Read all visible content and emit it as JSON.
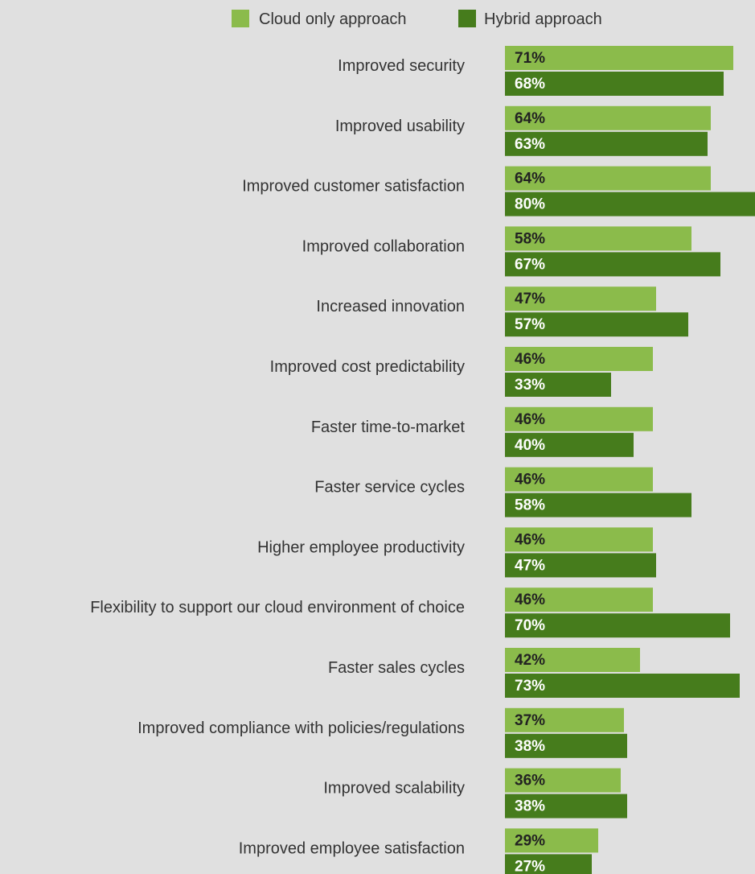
{
  "chart_data": {
    "type": "bar",
    "orientation": "horizontal",
    "legend_position": "top",
    "xlim": [
      0,
      80
    ],
    "grid": false,
    "categories": [
      "Improved security",
      "Improved usability",
      "Improved customer satisfaction",
      "Improved collaboration",
      "Increased innovation",
      "Improved cost predictability",
      "Faster time-to-market",
      "Faster service cycles",
      "Higher employee productivity",
      "Flexibility to support our cloud environment of choice",
      "Faster sales cycles",
      "Improved compliance with policies/regulations",
      "Improved scalability",
      "Improved employee satisfaction"
    ],
    "series": [
      {
        "name": "Cloud only approach",
        "color": "#8bbb4b",
        "label_color": "#222222",
        "values": [
          71,
          64,
          64,
          58,
          47,
          46,
          46,
          46,
          46,
          46,
          42,
          37,
          36,
          29
        ],
        "labels": [
          "71%",
          "64%",
          "64%",
          "58%",
          "47%",
          "46%",
          "46%",
          "46%",
          "46%",
          "46%",
          "42%",
          "37%",
          "36%",
          "29%"
        ]
      },
      {
        "name": "Hybrid approach",
        "color": "#467c1c",
        "label_color": "#ffffff",
        "values": [
          68,
          63,
          80,
          67,
          57,
          33,
          40,
          58,
          47,
          70,
          73,
          38,
          38,
          27
        ],
        "labels": [
          "68%",
          "63%",
          "80%",
          "67%",
          "57%",
          "33%",
          "40%",
          "58%",
          "47%",
          "70%",
          "73%",
          "38%",
          "38%",
          "27%"
        ]
      }
    ]
  }
}
